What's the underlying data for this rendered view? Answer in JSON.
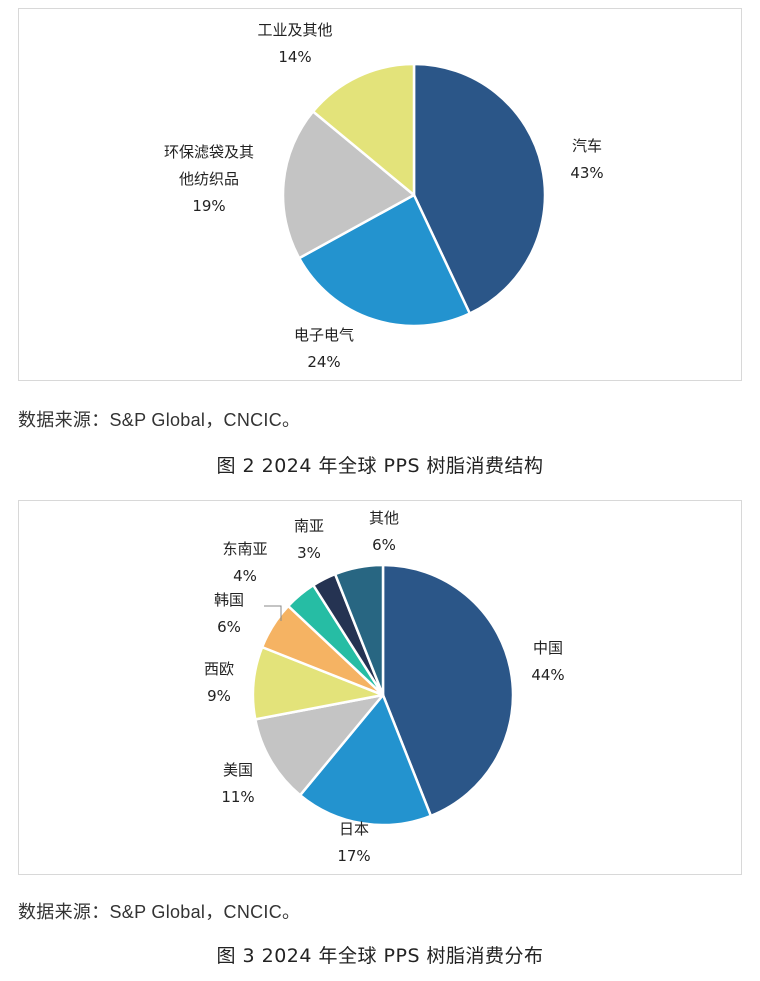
{
  "figures": [
    {
      "source": "数据来源：S&P Global，CNCIC。",
      "caption": "图 2  2024 年全球 PPS 树脂消费结构"
    },
    {
      "source": "数据来源：S&P Global，CNCIC。",
      "caption": "图 3  2024 年全球 PPS 树脂消费分布"
    }
  ],
  "chart_data": [
    {
      "type": "pie",
      "categories": [
        "汽车",
        "电子电气",
        "环保滤袋及其他纺织品",
        "工业及其他"
      ],
      "label_lines": [
        [
          "汽车",
          "43%"
        ],
        [
          "电子电气",
          "24%"
        ],
        [
          "环保滤袋及其",
          "他纺织品",
          "19%"
        ],
        [
          "工业及其他",
          "14%"
        ]
      ],
      "values": [
        43,
        24,
        19,
        14
      ],
      "colors": [
        "#2b5688",
        "#2393cf",
        "#c4c4c4",
        "#e3e37a"
      ],
      "start_angle_deg": 0,
      "direction": "clockwise"
    },
    {
      "type": "pie",
      "categories": [
        "中国",
        "日本",
        "美国",
        "西欧",
        "韩国",
        "东南亚",
        "南亚",
        "其他"
      ],
      "label_lines": [
        [
          "中国",
          "44%"
        ],
        [
          "日本",
          "17%"
        ],
        [
          "美国",
          "11%"
        ],
        [
          "西欧",
          "9%"
        ],
        [
          "韩国",
          "6%"
        ],
        [
          "东南亚",
          "4%"
        ],
        [
          "南亚",
          "3%"
        ],
        [
          "其他",
          "6%"
        ]
      ],
      "values": [
        44,
        17,
        11,
        9,
        6,
        4,
        3,
        6
      ],
      "colors": [
        "#2b5688",
        "#2393cf",
        "#c4c4c4",
        "#e3e37a",
        "#f5b363",
        "#26bda4",
        "#253352",
        "#286682"
      ],
      "start_angle_deg": 0,
      "direction": "clockwise"
    }
  ]
}
